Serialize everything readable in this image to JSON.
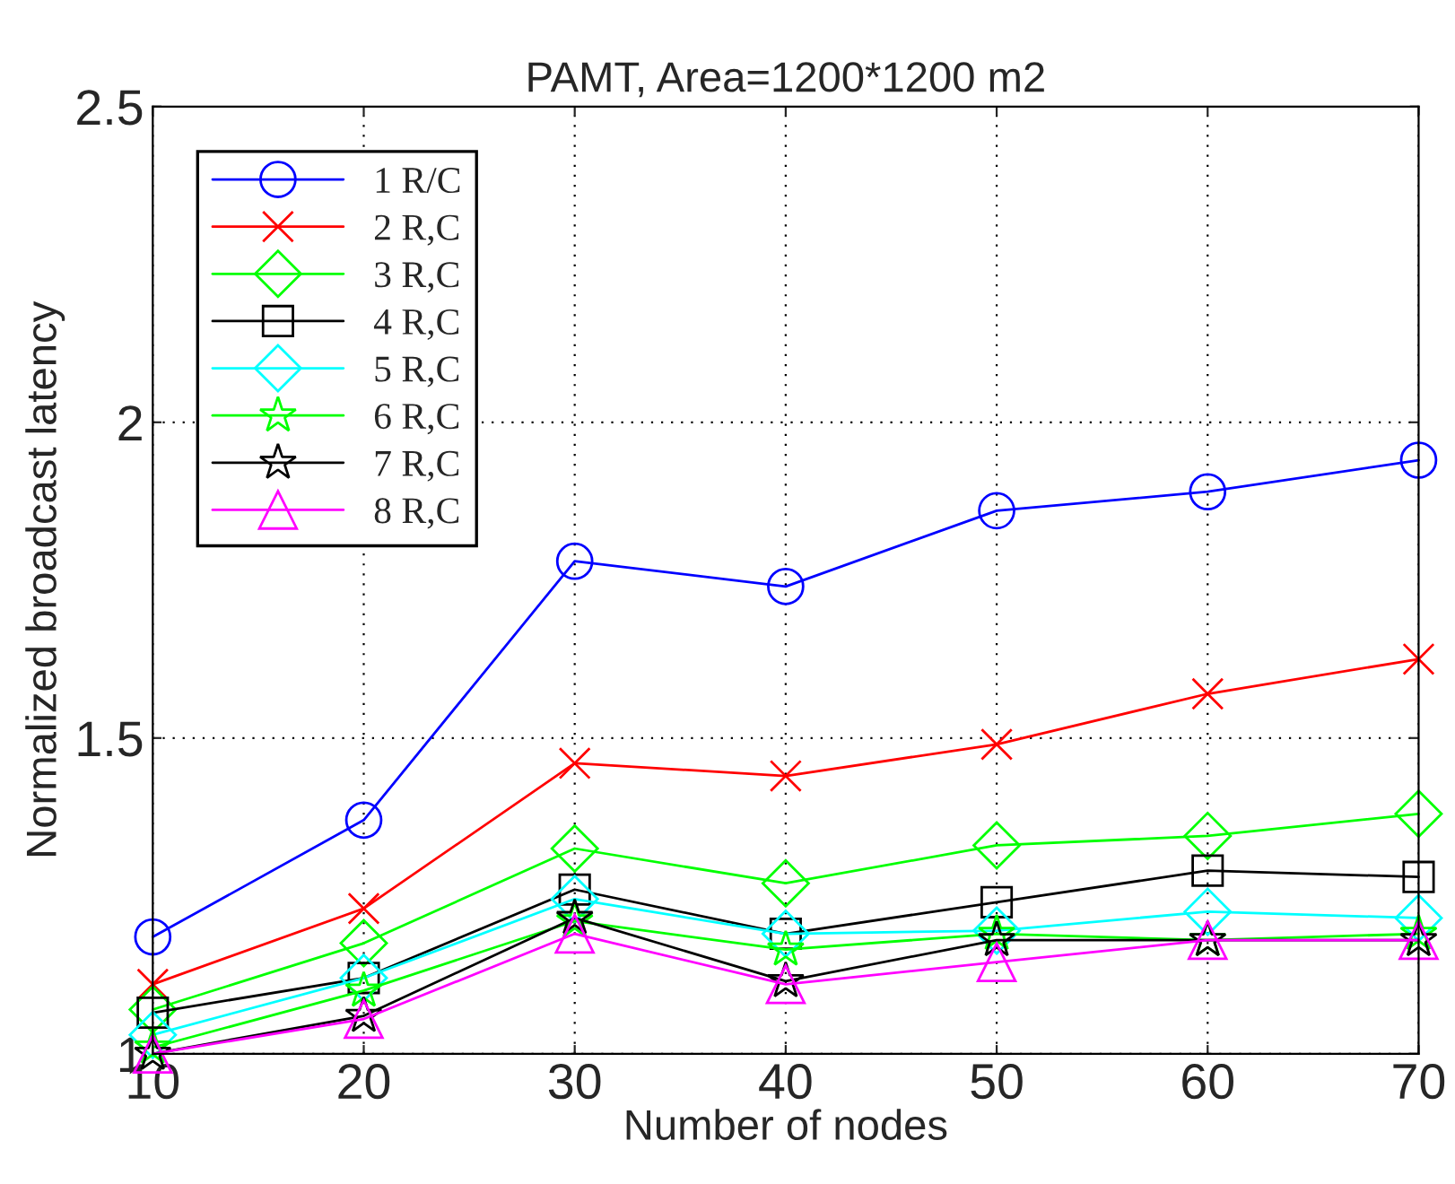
{
  "chart_data": {
    "type": "line",
    "title": "PAMT, Area=1200*1200 m2",
    "xlabel": "Number of nodes",
    "ylabel": "Normalized broadcast latency",
    "x": [
      10,
      20,
      30,
      40,
      50,
      60,
      70
    ],
    "series": [
      {
        "name": "1 R/C",
        "color": "#0000ff",
        "marker": "circle",
        "values": [
          1.185,
          1.37,
          1.78,
          1.74,
          1.86,
          1.89,
          1.94
        ]
      },
      {
        "name": "2 R,C",
        "color": "#ff0000",
        "marker": "cross",
        "values": [
          1.11,
          1.23,
          1.46,
          1.44,
          1.49,
          1.57,
          1.625
        ]
      },
      {
        "name": "3 R,C",
        "color": "#00ff00",
        "marker": "diamond",
        "values": [
          1.07,
          1.175,
          1.325,
          1.27,
          1.33,
          1.345,
          1.38
        ]
      },
      {
        "name": "4 R,C",
        "color": "#000000",
        "marker": "square",
        "values": [
          1.065,
          1.12,
          1.26,
          1.19,
          1.24,
          1.29,
          1.28
        ]
      },
      {
        "name": "5 R,C",
        "color": "#00ffff",
        "marker": "diamond",
        "values": [
          1.03,
          1.12,
          1.245,
          1.19,
          1.195,
          1.225,
          1.215
        ]
      },
      {
        "name": "6 R,C",
        "color": "#00ff00",
        "marker": "star",
        "values": [
          1.01,
          1.1,
          1.21,
          1.165,
          1.19,
          1.18,
          1.19
        ]
      },
      {
        "name": "7 R,C",
        "color": "#000000",
        "marker": "star",
        "values": [
          1.0,
          1.06,
          1.215,
          1.115,
          1.18,
          1.18,
          1.18
        ]
      },
      {
        "name": "8 R,C",
        "color": "#ff00ff",
        "marker": "triangle",
        "values": [
          1.0,
          1.055,
          1.19,
          1.11,
          1.145,
          1.18,
          1.18
        ]
      }
    ],
    "xlim": [
      10,
      70
    ],
    "ylim": [
      1,
      2.5
    ],
    "xticks": [
      10,
      20,
      30,
      40,
      50,
      60,
      70
    ],
    "yticks": [
      1,
      1.5,
      2,
      2.5
    ],
    "grid": true,
    "legend": "top left",
    "line_style": "solid"
  }
}
